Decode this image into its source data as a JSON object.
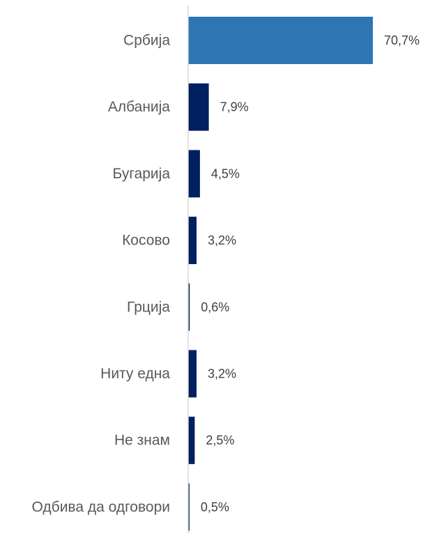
{
  "chart_data": {
    "type": "bar",
    "orientation": "horizontal",
    "categories": [
      "Србија",
      "Албанија",
      "Бугарија",
      "Косово",
      "Грција",
      "Ниту една",
      "Не знам",
      "Одбива да одговори"
    ],
    "values": [
      70.7,
      7.9,
      4.5,
      3.2,
      0.6,
      3.2,
      2.5,
      0.5
    ],
    "value_labels": [
      "70,7%",
      "7,9%",
      "4,5%",
      "3,2%",
      "0,6%",
      "3,2%",
      "2,5%",
      "0,5%"
    ],
    "unit": "%",
    "xlim": [
      0,
      70.7
    ],
    "grid": false,
    "legend": "none",
    "colors": {
      "highlight": "#2E75B6",
      "default": "#002060",
      "axis": "#D9D9D9"
    },
    "highlight_index": 0
  }
}
